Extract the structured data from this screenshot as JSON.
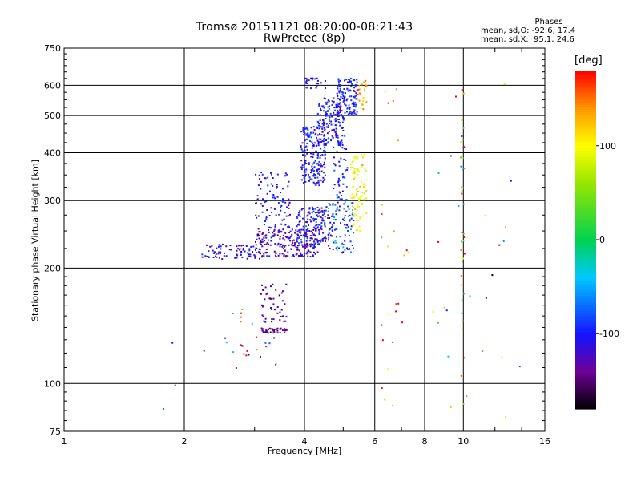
{
  "title_line1": "Tromsø 20151121 08:20:00-08:21:43",
  "title_line2": "RwPretec (8p)",
  "phases": {
    "title": "Phases",
    "line_o": "mean, sd,O: -92.6, 17.4",
    "line_x": "mean, sd,X:  95.1, 24.6"
  },
  "colorbar": {
    "label": "[deg]",
    "range": [
      -180,
      180
    ],
    "ticks": [
      100,
      0,
      -100
    ]
  },
  "chart_data": {
    "type": "scatter",
    "xlabel": "Frequency [MHz]",
    "ylabel": "Stationary phase Virtual Height [km]",
    "xscale": "log",
    "yscale": "log",
    "xlim": [
      1,
      16
    ],
    "ylim": [
      75,
      750
    ],
    "xticks": [
      1,
      2,
      4,
      6,
      8,
      10,
      16
    ],
    "yticks": [
      75,
      100,
      200,
      300,
      400,
      500,
      600,
      750
    ],
    "grid": true,
    "color_encodes": "phase [deg]",
    "clusters": [
      {
        "f_range": [
          2.2,
          3.1
        ],
        "h_range": [
          212,
          232
        ],
        "n": 80,
        "phase": -110,
        "sd": 12
      },
      {
        "f_range": [
          3.0,
          4.3
        ],
        "h_range": [
          215,
          255
        ],
        "n": 220,
        "phase": -120,
        "sd": 18
      },
      {
        "f_range": [
          3.8,
          4.5
        ],
        "h_range": [
          230,
          290
        ],
        "n": 140,
        "phase": -105,
        "sd": 18
      },
      {
        "f_range": [
          3.9,
          4.5
        ],
        "h_range": [
          330,
          470
        ],
        "n": 180,
        "phase": -102,
        "sd": 14
      },
      {
        "f_range": [
          4.3,
          5.0
        ],
        "h_range": [
          420,
          560
        ],
        "n": 170,
        "phase": -100,
        "sd": 14
      },
      {
        "f_range": [
          4.8,
          5.4
        ],
        "h_range": [
          500,
          630
        ],
        "n": 120,
        "phase": -98,
        "sd": 12
      },
      {
        "f_range": [
          4.0,
          4.5
        ],
        "h_range": [
          590,
          630
        ],
        "n": 25,
        "phase": -100,
        "sd": 8
      },
      {
        "f_range": [
          3.0,
          3.7
        ],
        "h_range": [
          255,
          360
        ],
        "n": 90,
        "phase": -105,
        "sd": 15
      },
      {
        "f_range": [
          4.5,
          5.3
        ],
        "h_range": [
          220,
          300
        ],
        "n": 110,
        "phase": -80,
        "sd": 35
      },
      {
        "f_range": [
          4.7,
          5.1
        ],
        "h_range": [
          300,
          450
        ],
        "n": 50,
        "phase": -95,
        "sd": 15
      },
      {
        "f_range": [
          5.2,
          5.7
        ],
        "h_range": [
          250,
          400
        ],
        "n": 90,
        "phase": 95,
        "sd": 18
      },
      {
        "f_range": [
          5.4,
          5.7
        ],
        "h_range": [
          520,
          620
        ],
        "n": 25,
        "phase": 130,
        "sd": 25
      },
      {
        "f_range": [
          3.1,
          3.6
        ],
        "h_range": [
          136,
          140
        ],
        "n": 45,
        "phase": -140,
        "sd": 10
      },
      {
        "f_range": [
          3.1,
          3.6
        ],
        "h_range": [
          145,
          183
        ],
        "n": 45,
        "phase": -140,
        "sd": 15
      },
      {
        "f_range": [
          2.5,
          3.4
        ],
        "h_range": [
          110,
          160
        ],
        "n": 25,
        "phase": 60,
        "sd": 120
      },
      {
        "f_range": [
          9.8,
          10.0
        ],
        "h_range": [
          100,
          600
        ],
        "n": 35,
        "phase": 100,
        "sd": 60
      },
      {
        "f_range": [
          6.2,
          7.3
        ],
        "h_range": [
          85,
          680
        ],
        "n": 25,
        "phase": 100,
        "sd": 90
      },
      {
        "f_range": [
          8.3,
          14.0
        ],
        "h_range": [
          80,
          620
        ],
        "n": 30,
        "phase": 0,
        "sd": 130
      },
      {
        "f_range": [
          1.4,
          2.6
        ],
        "h_range": [
          76,
          175
        ],
        "n": 5,
        "phase": -110,
        "sd": 20
      }
    ]
  }
}
